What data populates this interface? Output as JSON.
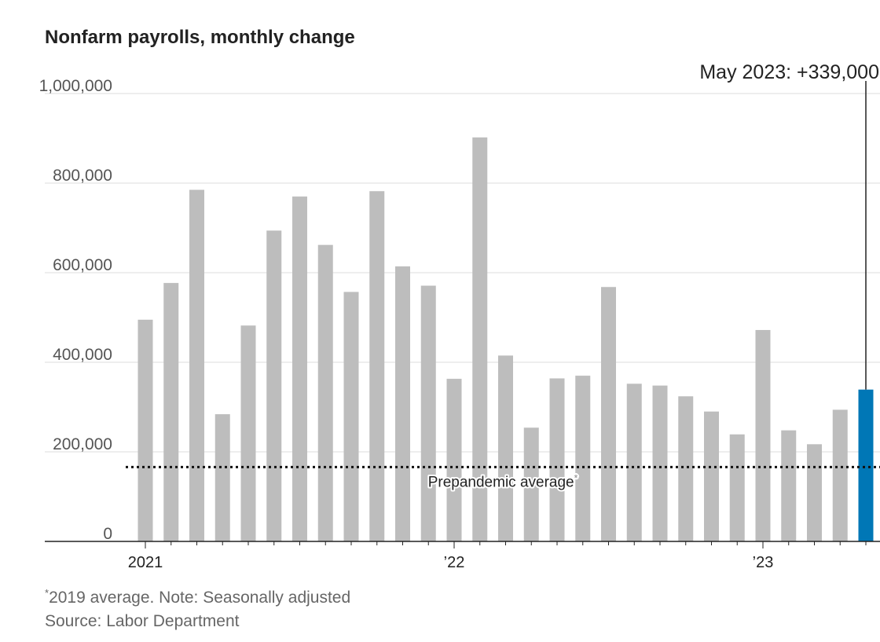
{
  "chart_data": {
    "type": "bar",
    "title": "Nonfarm payrolls, monthly change",
    "xlabel": "",
    "ylabel": "",
    "ylim": [
      0,
      1000000
    ],
    "yticks": [
      0,
      200000,
      400000,
      600000,
      800000,
      1000000
    ],
    "ytick_labels": [
      "0",
      "200,000",
      "400,000",
      "600,000",
      "800,000",
      "1,000,000"
    ],
    "xtick_labels": [
      {
        "label": "2021",
        "index": 0
      },
      {
        "label": "’22",
        "index": 12
      },
      {
        "label": "’23",
        "index": 24
      }
    ],
    "categories": [
      "Jan 2021",
      "Feb 2021",
      "Mar 2021",
      "Apr 2021",
      "May 2021",
      "Jun 2021",
      "Jul 2021",
      "Aug 2021",
      "Sep 2021",
      "Oct 2021",
      "Nov 2021",
      "Dec 2021",
      "Jan 2022",
      "Feb 2022",
      "Mar 2022",
      "Apr 2022",
      "May 2022",
      "Jun 2022",
      "Jul 2022",
      "Aug 2022",
      "Sep 2022",
      "Oct 2022",
      "Nov 2022",
      "Dec 2022",
      "Jan 2023",
      "Feb 2023",
      "Mar 2023",
      "Apr 2023",
      "May 2023"
    ],
    "values": [
      495000,
      577000,
      785000,
      284000,
      482000,
      694000,
      770000,
      662000,
      557000,
      782000,
      614000,
      571000,
      363000,
      902000,
      415000,
      254000,
      364000,
      370000,
      568000,
      352000,
      348000,
      324000,
      290000,
      239000,
      472000,
      248000,
      217000,
      294000,
      339000
    ],
    "highlight_index": 28,
    "highlight_color": "#0077b6",
    "bar_color": "#bdbdbd",
    "reference_line": {
      "value": 166000,
      "label": "Prepandemic average",
      "marker": "*"
    },
    "callout": "May 2023: +339,000",
    "grid": true
  },
  "footnote": {
    "marker": "*",
    "text": "2019 average. Note: Seasonally adjusted"
  },
  "source": "Source: Labor Department"
}
